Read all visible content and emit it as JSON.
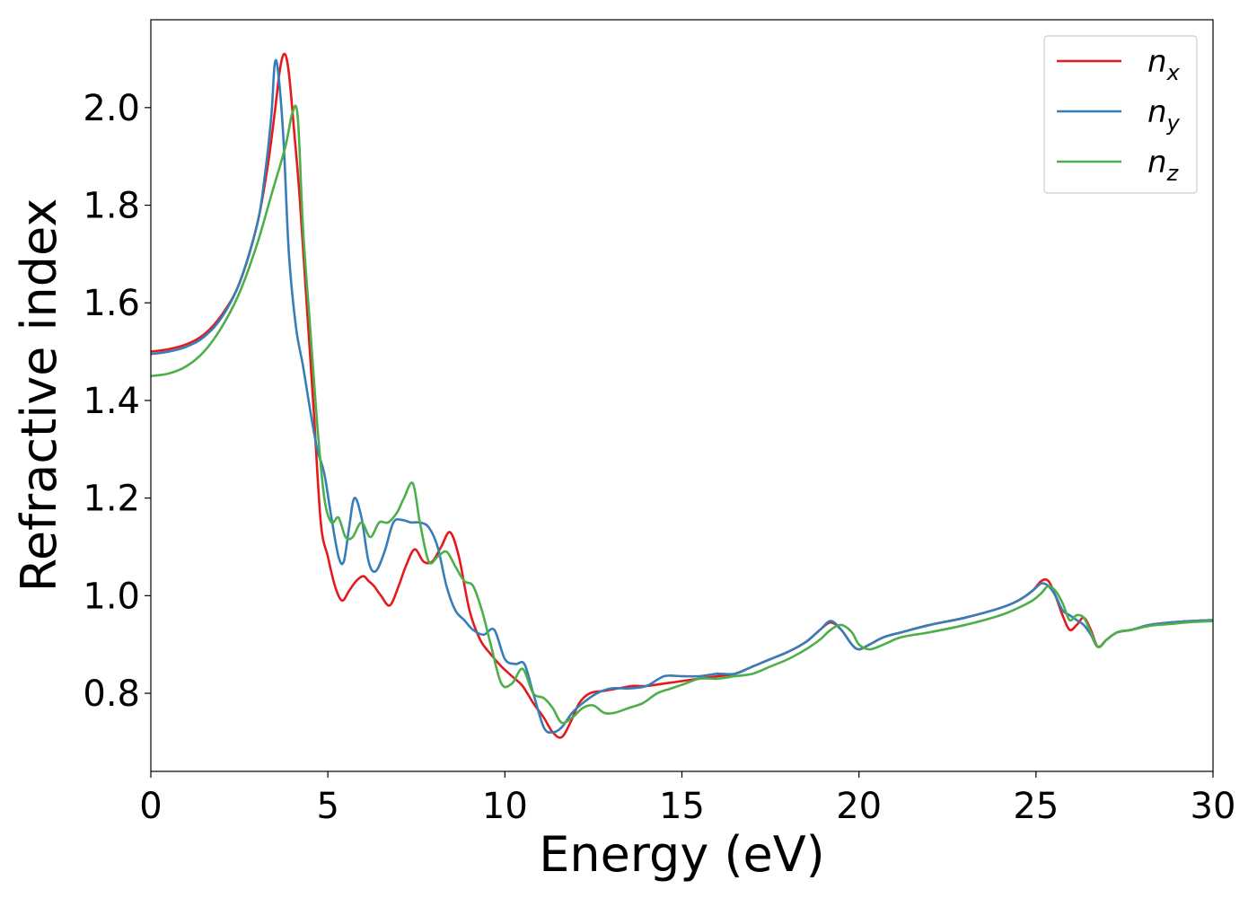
{
  "chart_data": {
    "type": "line",
    "xlabel": "Energy (eV)",
    "ylabel": "Refractive index",
    "xlim": [
      0,
      30
    ],
    "ylim": [
      0.64,
      2.18
    ],
    "xticks": [
      0,
      5,
      10,
      15,
      20,
      25,
      30
    ],
    "xtick_labels": [
      "0",
      "5",
      "10",
      "15",
      "20",
      "25",
      "30"
    ],
    "yticks": [
      0.8,
      1.0,
      1.2,
      1.4,
      1.6,
      1.8,
      2.0
    ],
    "ytick_labels": [
      "0.8",
      "1.0",
      "1.2",
      "1.4",
      "1.6",
      "1.8",
      "2.0"
    ],
    "grid": false,
    "legend_position": "top-right",
    "series": [
      {
        "name": "n_x",
        "label_base": "n",
        "label_sub": "x",
        "color": "#e41a1c",
        "x": [
          0,
          0.5,
          1.0,
          1.5,
          2.0,
          2.5,
          3.0,
          3.3,
          3.5,
          3.65,
          3.78,
          3.9,
          4.05,
          4.2,
          4.4,
          4.6,
          4.8,
          5.0,
          5.2,
          5.4,
          5.6,
          5.8,
          6.0,
          6.15,
          6.3,
          6.5,
          6.75,
          7.0,
          7.2,
          7.45,
          7.7,
          7.95,
          8.2,
          8.45,
          8.7,
          9.0,
          9.3,
          9.6,
          9.9,
          10.2,
          10.5,
          10.8,
          11.1,
          11.35,
          11.6,
          11.85,
          12.1,
          12.4,
          12.8,
          13.2,
          13.6,
          14.0,
          14.5,
          15.0,
          15.5,
          16.0,
          16.5,
          17.0,
          17.5,
          18.0,
          18.5,
          18.9,
          19.2,
          19.5,
          19.8,
          20.0,
          20.3,
          20.7,
          21.2,
          22.0,
          23.0,
          24.0,
          24.5,
          24.9,
          25.15,
          25.35,
          25.55,
          25.75,
          25.95,
          26.15,
          26.35,
          26.55,
          26.75,
          27.0,
          27.3,
          27.7,
          28.2,
          28.8,
          29.4,
          30.0
        ],
        "y": [
          1.5,
          1.505,
          1.515,
          1.535,
          1.575,
          1.64,
          1.76,
          1.88,
          1.99,
          2.08,
          2.11,
          2.07,
          1.95,
          1.82,
          1.6,
          1.38,
          1.15,
          1.08,
          1.02,
          0.99,
          1.01,
          1.03,
          1.04,
          1.03,
          1.02,
          1.0,
          0.98,
          1.02,
          1.06,
          1.095,
          1.07,
          1.07,
          1.1,
          1.13,
          1.08,
          0.97,
          0.91,
          0.88,
          0.855,
          0.835,
          0.815,
          0.78,
          0.75,
          0.72,
          0.71,
          0.74,
          0.78,
          0.8,
          0.805,
          0.81,
          0.815,
          0.815,
          0.82,
          0.825,
          0.83,
          0.835,
          0.84,
          0.855,
          0.87,
          0.885,
          0.905,
          0.93,
          0.945,
          0.93,
          0.9,
          0.89,
          0.9,
          0.915,
          0.925,
          0.94,
          0.955,
          0.975,
          0.99,
          1.01,
          1.03,
          1.03,
          1.0,
          0.96,
          0.93,
          0.94,
          0.955,
          0.93,
          0.895,
          0.91,
          0.925,
          0.93,
          0.94,
          0.945,
          0.948,
          0.95
        ]
      },
      {
        "name": "n_y",
        "label_base": "n",
        "label_sub": "y",
        "color": "#377eb8",
        "x": [
          0,
          0.5,
          1.0,
          1.5,
          2.0,
          2.5,
          3.0,
          3.2,
          3.4,
          3.5,
          3.6,
          3.75,
          3.9,
          4.1,
          4.3,
          4.5,
          4.7,
          4.9,
          5.1,
          5.3,
          5.45,
          5.6,
          5.75,
          5.95,
          6.15,
          6.35,
          6.6,
          6.85,
          7.1,
          7.35,
          7.6,
          7.85,
          8.1,
          8.35,
          8.6,
          8.85,
          9.1,
          9.4,
          9.7,
          10.0,
          10.3,
          10.55,
          10.8,
          11.1,
          11.35,
          11.6,
          11.9,
          12.2,
          12.6,
          13.0,
          13.5,
          14.0,
          14.5,
          15.0,
          15.5,
          16.0,
          16.5,
          17.0,
          17.5,
          18.0,
          18.5,
          18.9,
          19.2,
          19.5,
          19.8,
          20.0,
          20.3,
          20.7,
          21.2,
          22.0,
          23.0,
          24.0,
          24.5,
          24.9,
          25.15,
          25.35,
          25.55,
          25.75,
          25.95,
          26.15,
          26.35,
          26.55,
          26.75,
          27.0,
          27.3,
          27.7,
          28.2,
          28.8,
          29.4,
          30.0
        ],
        "y": [
          1.495,
          1.5,
          1.51,
          1.53,
          1.57,
          1.64,
          1.76,
          1.85,
          1.98,
          2.09,
          2.07,
          1.93,
          1.7,
          1.55,
          1.47,
          1.38,
          1.3,
          1.25,
          1.16,
          1.08,
          1.07,
          1.14,
          1.2,
          1.16,
          1.07,
          1.05,
          1.09,
          1.15,
          1.155,
          1.15,
          1.15,
          1.14,
          1.1,
          1.02,
          0.97,
          0.95,
          0.93,
          0.92,
          0.93,
          0.87,
          0.86,
          0.86,
          0.8,
          0.73,
          0.72,
          0.73,
          0.76,
          0.78,
          0.8,
          0.81,
          0.81,
          0.815,
          0.835,
          0.835,
          0.835,
          0.84,
          0.84,
          0.855,
          0.87,
          0.885,
          0.905,
          0.93,
          0.948,
          0.93,
          0.9,
          0.89,
          0.9,
          0.915,
          0.925,
          0.94,
          0.955,
          0.975,
          0.99,
          1.01,
          1.025,
          1.02,
          1.0,
          0.97,
          0.96,
          0.95,
          0.94,
          0.92,
          0.895,
          0.91,
          0.925,
          0.93,
          0.94,
          0.945,
          0.948,
          0.95
        ]
      },
      {
        "name": "n_z",
        "label_base": "n",
        "label_sub": "z",
        "color": "#4daf4a",
        "x": [
          0,
          0.5,
          1.0,
          1.5,
          2.0,
          2.5,
          3.0,
          3.4,
          3.8,
          4.0,
          4.15,
          4.3,
          4.5,
          4.7,
          4.9,
          5.1,
          5.3,
          5.5,
          5.7,
          5.95,
          6.2,
          6.45,
          6.7,
          6.95,
          7.15,
          7.4,
          7.6,
          7.85,
          8.1,
          8.35,
          8.6,
          8.85,
          9.1,
          9.35,
          9.6,
          9.9,
          10.2,
          10.5,
          10.8,
          11.1,
          11.35,
          11.6,
          11.9,
          12.2,
          12.5,
          12.8,
          13.1,
          13.5,
          13.9,
          14.3,
          14.7,
          15.1,
          15.5,
          16.0,
          16.5,
          17.0,
          17.5,
          18.0,
          18.5,
          18.9,
          19.2,
          19.5,
          19.8,
          20.0,
          20.3,
          20.7,
          21.2,
          22.0,
          23.0,
          24.0,
          24.5,
          24.9,
          25.15,
          25.35,
          25.55,
          25.75,
          25.95,
          26.15,
          26.35,
          26.55,
          26.75,
          27.0,
          27.3,
          27.7,
          28.2,
          28.8,
          29.4,
          30.0
        ],
        "y": [
          1.45,
          1.455,
          1.47,
          1.5,
          1.55,
          1.62,
          1.72,
          1.82,
          1.92,
          1.99,
          1.98,
          1.75,
          1.55,
          1.35,
          1.2,
          1.15,
          1.16,
          1.12,
          1.12,
          1.15,
          1.12,
          1.15,
          1.15,
          1.17,
          1.2,
          1.23,
          1.15,
          1.07,
          1.08,
          1.09,
          1.06,
          1.03,
          1.02,
          0.97,
          0.9,
          0.82,
          0.82,
          0.85,
          0.8,
          0.79,
          0.77,
          0.74,
          0.75,
          0.77,
          0.775,
          0.76,
          0.76,
          0.77,
          0.78,
          0.8,
          0.81,
          0.82,
          0.83,
          0.83,
          0.835,
          0.84,
          0.855,
          0.87,
          0.89,
          0.91,
          0.93,
          0.94,
          0.925,
          0.9,
          0.89,
          0.9,
          0.915,
          0.925,
          0.94,
          0.96,
          0.975,
          0.99,
          1.005,
          1.02,
          1.01,
          0.985,
          0.95,
          0.96,
          0.955,
          0.925,
          0.895,
          0.91,
          0.925,
          0.93,
          0.938,
          0.942,
          0.946,
          0.948
        ]
      }
    ]
  }
}
